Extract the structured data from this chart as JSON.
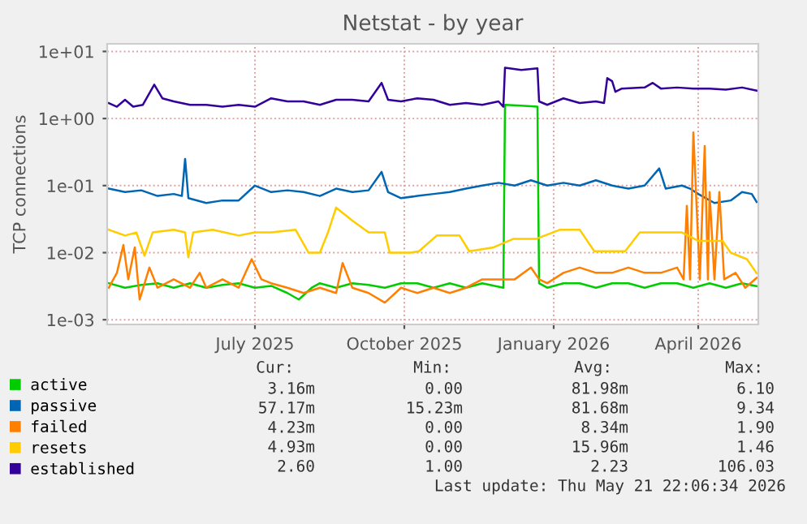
{
  "chart_data": {
    "type": "line",
    "title": "Netstat - by year",
    "ylabel": "TCP connections",
    "log": "y",
    "grid": true,
    "legend": "bottom left",
    "marker": "none",
    "line_style": "solid",
    "xlim": [
      "2025-04-16",
      "2026-05-22"
    ],
    "xticks": [
      {
        "value": "2025-07-16",
        "label": "July 2025"
      },
      {
        "value": "2025-10-16",
        "label": "October 2025"
      },
      {
        "value": "2026-01-16",
        "label": "January 2026"
      },
      {
        "value": "2026-04-15",
        "label": "April 2026"
      }
    ],
    "ylim": [
      0.00085,
      13
    ],
    "yticks": [
      {
        "value": 0.001,
        "label": "1e-03"
      },
      {
        "value": 0.01,
        "label": "1e-02"
      },
      {
        "value": 0.1,
        "label": "1e-01"
      },
      {
        "value": 1,
        "label": "1e+00"
      },
      {
        "value": 10,
        "label": "1e+01"
      }
    ],
    "series": [
      {
        "name": "active",
        "color": "#00cc00",
        "x": [
          "2025-04-17",
          "2025-04-27",
          "2025-05-07",
          "2025-05-17",
          "2025-05-27",
          "2025-06-06",
          "2025-06-16",
          "2025-06-26",
          "2025-07-06",
          "2025-07-16",
          "2025-07-26",
          "2025-08-05",
          "2025-08-12",
          "2025-08-20",
          "2025-08-25",
          "2025-09-04",
          "2025-09-14",
          "2025-09-24",
          "2025-10-04",
          "2025-10-14",
          "2025-10-24",
          "2025-11-03",
          "2025-11-13",
          "2025-11-23",
          "2025-12-03",
          "2025-12-16",
          "2025-12-17",
          "2025-12-27",
          "2026-01-06",
          "2026-01-07",
          "2026-01-12",
          "2026-01-22",
          "2026-02-01",
          "2026-02-11",
          "2026-02-21",
          "2026-03-03",
          "2026-03-13",
          "2026-03-23",
          "2026-04-02",
          "2026-04-12",
          "2026-04-22",
          "2026-05-02",
          "2026-05-12",
          "2026-05-21"
        ],
        "values": [
          0.0035,
          0.003,
          0.0033,
          0.0035,
          0.003,
          0.0035,
          0.003,
          0.0033,
          0.0035,
          0.003,
          0.0032,
          0.0025,
          0.002,
          0.003,
          0.0035,
          0.003,
          0.0035,
          0.0033,
          0.003,
          0.0035,
          0.0035,
          0.003,
          0.0035,
          0.003,
          0.0035,
          0.003,
          1.6,
          1.55,
          1.5,
          0.0035,
          0.003,
          0.0035,
          0.0035,
          0.003,
          0.0035,
          0.0035,
          0.003,
          0.0035,
          0.0035,
          0.003,
          0.0035,
          0.003,
          0.0035,
          0.00316
        ]
      },
      {
        "name": "passive",
        "color": "#0066b3",
        "x": [
          "2025-04-17",
          "2025-04-27",
          "2025-05-07",
          "2025-05-17",
          "2025-05-27",
          "2025-06-01",
          "2025-06-03",
          "2025-06-05",
          "2025-06-16",
          "2025-06-26",
          "2025-07-06",
          "2025-07-16",
          "2025-07-26",
          "2025-08-05",
          "2025-08-15",
          "2025-08-25",
          "2025-09-04",
          "2025-09-14",
          "2025-09-24",
          "2025-10-02",
          "2025-10-06",
          "2025-10-14",
          "2025-10-24",
          "2025-11-03",
          "2025-11-13",
          "2025-11-23",
          "2025-12-03",
          "2025-12-13",
          "2025-12-23",
          "2026-01-02",
          "2026-01-12",
          "2026-01-22",
          "2026-02-01",
          "2026-02-11",
          "2026-02-21",
          "2026-03-03",
          "2026-03-13",
          "2026-03-22",
          "2026-03-26",
          "2026-04-05",
          "2026-04-10",
          "2026-04-15",
          "2026-04-25",
          "2026-05-05",
          "2026-05-12",
          "2026-05-18",
          "2026-05-21"
        ],
        "values": [
          0.09,
          0.08,
          0.085,
          0.07,
          0.075,
          0.07,
          0.25,
          0.065,
          0.055,
          0.06,
          0.06,
          0.1,
          0.08,
          0.085,
          0.08,
          0.07,
          0.09,
          0.08,
          0.085,
          0.16,
          0.08,
          0.065,
          0.07,
          0.075,
          0.08,
          0.09,
          0.1,
          0.11,
          0.1,
          0.12,
          0.1,
          0.11,
          0.1,
          0.12,
          0.1,
          0.09,
          0.1,
          0.18,
          0.09,
          0.1,
          0.09,
          0.075,
          0.055,
          0.06,
          0.08,
          0.075,
          0.057
        ]
      },
      {
        "name": "failed",
        "color": "#ff8000",
        "x": [
          "2025-04-17",
          "2025-04-22",
          "2025-04-26",
          "2025-04-29",
          "2025-05-03",
          "2025-05-06",
          "2025-05-12",
          "2025-05-17",
          "2025-05-27",
          "2025-06-06",
          "2025-06-12",
          "2025-06-16",
          "2025-06-26",
          "2025-07-06",
          "2025-07-14",
          "2025-07-20",
          "2025-07-26",
          "2025-08-05",
          "2025-08-15",
          "2025-08-25",
          "2025-09-04",
          "2025-09-08",
          "2025-09-14",
          "2025-09-24",
          "2025-10-04",
          "2025-10-14",
          "2025-10-24",
          "2025-11-03",
          "2025-11-13",
          "2025-11-23",
          "2025-12-03",
          "2025-12-13",
          "2025-12-23",
          "2026-01-02",
          "2026-01-07",
          "2026-01-12",
          "2026-01-22",
          "2026-02-01",
          "2026-02-11",
          "2026-02-21",
          "2026-03-03",
          "2026-03-13",
          "2026-03-23",
          "2026-04-02",
          "2026-04-06",
          "2026-04-08",
          "2026-04-10",
          "2026-04-12",
          "2026-04-16",
          "2026-04-19",
          "2026-04-21",
          "2026-04-22",
          "2026-04-25",
          "2026-04-28",
          "2026-05-01",
          "2026-05-08",
          "2026-05-14",
          "2026-05-21"
        ],
        "values": [
          0.003,
          0.005,
          0.013,
          0.004,
          0.012,
          0.002,
          0.006,
          0.003,
          0.004,
          0.003,
          0.005,
          0.003,
          0.004,
          0.003,
          0.008,
          0.004,
          0.0035,
          0.003,
          0.0025,
          0.003,
          0.0025,
          0.007,
          0.003,
          0.0025,
          0.0018,
          0.003,
          0.0025,
          0.003,
          0.0025,
          0.003,
          0.004,
          0.004,
          0.004,
          0.006,
          0.004,
          0.0035,
          0.005,
          0.006,
          0.005,
          0.005,
          0.006,
          0.005,
          0.005,
          0.006,
          0.004,
          0.05,
          0.004,
          0.62,
          0.004,
          0.39,
          0.004,
          0.08,
          0.004,
          0.08,
          0.004,
          0.005,
          0.003,
          0.0042
        ]
      },
      {
        "name": "resets",
        "color": "#ffcc00",
        "x": [
          "2025-04-17",
          "2025-04-27",
          "2025-05-04",
          "2025-05-09",
          "2025-05-14",
          "2025-05-27",
          "2025-06-03",
          "2025-06-05",
          "2025-06-08",
          "2025-06-20",
          "2025-07-06",
          "2025-07-16",
          "2025-07-26",
          "2025-08-10",
          "2025-08-18",
          "2025-08-25",
          "2025-08-30",
          "2025-09-04",
          "2025-09-14",
          "2025-09-24",
          "2025-10-04",
          "2025-10-07",
          "2025-10-20",
          "2025-10-25",
          "2025-11-05",
          "2025-11-19",
          "2025-11-25",
          "2025-12-10",
          "2025-12-22",
          "2026-01-05",
          "2026-01-20",
          "2026-02-01",
          "2026-02-10",
          "2026-03-01",
          "2026-03-10",
          "2026-04-05",
          "2026-04-15",
          "2026-04-30",
          "2026-05-05",
          "2026-05-15",
          "2026-05-21"
        ],
        "values": [
          0.022,
          0.018,
          0.02,
          0.009,
          0.02,
          0.022,
          0.02,
          0.0085,
          0.02,
          0.022,
          0.018,
          0.02,
          0.02,
          0.022,
          0.01,
          0.01,
          0.02,
          0.047,
          0.03,
          0.02,
          0.02,
          0.01,
          0.01,
          0.0105,
          0.018,
          0.018,
          0.0105,
          0.012,
          0.016,
          0.016,
          0.022,
          0.022,
          0.0105,
          0.0105,
          0.02,
          0.02,
          0.015,
          0.015,
          0.01,
          0.008,
          0.00493
        ]
      },
      {
        "name": "established",
        "color": "#330099",
        "x": [
          "2025-04-17",
          "2025-04-22",
          "2025-04-27",
          "2025-05-02",
          "2025-05-08",
          "2025-05-15",
          "2025-05-20",
          "2025-05-27",
          "2025-06-06",
          "2025-06-16",
          "2025-06-26",
          "2025-07-06",
          "2025-07-16",
          "2025-07-26",
          "2025-08-05",
          "2025-08-15",
          "2025-08-25",
          "2025-09-04",
          "2025-09-14",
          "2025-09-24",
          "2025-10-02",
          "2025-10-06",
          "2025-10-14",
          "2025-10-24",
          "2025-11-03",
          "2025-11-13",
          "2025-11-23",
          "2025-12-03",
          "2025-12-13",
          "2025-12-16",
          "2025-12-17",
          "2025-12-27",
          "2026-01-06",
          "2026-01-07",
          "2026-01-12",
          "2026-01-22",
          "2026-02-01",
          "2026-02-11",
          "2026-02-16",
          "2026-02-18",
          "2026-02-21",
          "2026-02-23",
          "2026-02-27",
          "2026-03-13",
          "2026-03-18",
          "2026-03-23",
          "2026-04-02",
          "2026-04-12",
          "2026-04-22",
          "2026-05-02",
          "2026-05-12",
          "2026-05-21"
        ],
        "values": [
          1.7,
          1.5,
          1.9,
          1.5,
          1.6,
          3.2,
          2.0,
          1.8,
          1.6,
          1.6,
          1.5,
          1.6,
          1.5,
          2.0,
          1.8,
          1.8,
          1.6,
          1.9,
          1.9,
          1.8,
          3.4,
          1.9,
          1.8,
          2.0,
          1.9,
          1.6,
          1.7,
          1.6,
          1.8,
          1.5,
          5.7,
          5.3,
          5.6,
          1.8,
          1.6,
          2.0,
          1.7,
          1.8,
          1.7,
          4.0,
          3.6,
          2.5,
          2.8,
          2.9,
          3.4,
          2.8,
          2.9,
          2.8,
          2.8,
          2.7,
          2.9,
          2.6
        ]
      }
    ],
    "annotations": [
      "Cur:",
      "Min:",
      "Avg:",
      "Max:",
      "3.16m",
      "0.00",
      "81.98m",
      "6.10",
      "57.17m",
      "15.23m",
      "81.68m",
      "9.34",
      "4.23m",
      "0.00",
      "8.34m",
      "1.90",
      "4.93m",
      "0.00",
      "15.96m",
      "1.46",
      "2.60",
      "1.00",
      "2.23",
      "106.03",
      "Last update: Thu May 21 22:06:34 2026"
    ]
  }
}
